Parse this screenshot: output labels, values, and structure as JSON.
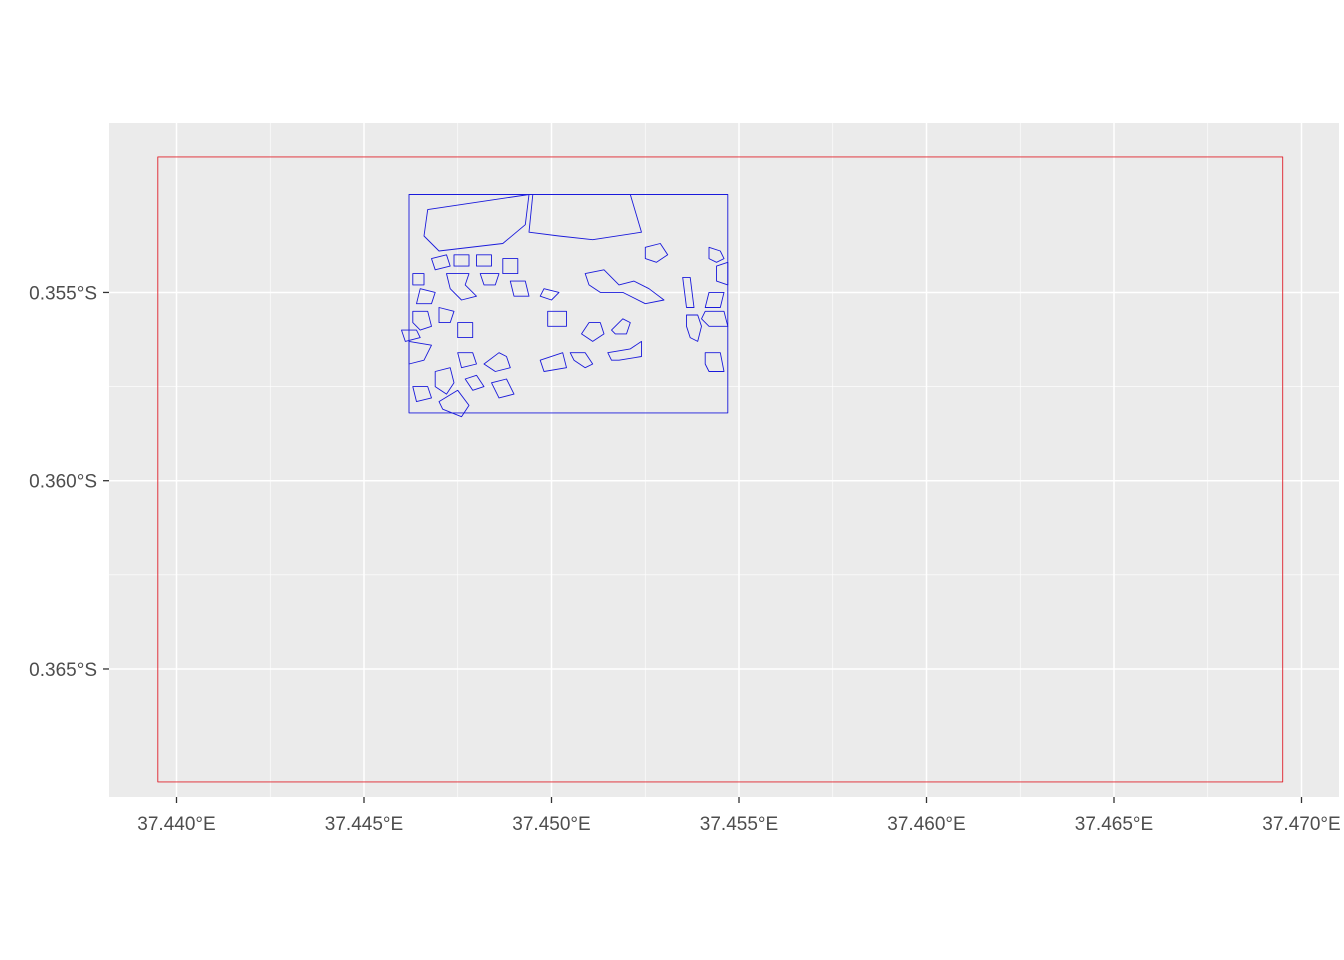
{
  "chart_data": {
    "type": "map",
    "crs_labels": "longitude/latitude",
    "xlim": [
      37.4382,
      37.471
    ],
    "ylim": [
      -0.3684,
      -0.3505
    ],
    "x_ticks": [
      {
        "value": 37.44,
        "label": "37.440°E"
      },
      {
        "value": 37.445,
        "label": "37.445°E"
      },
      {
        "value": 37.45,
        "label": "37.450°E"
      },
      {
        "value": 37.455,
        "label": "37.455°E"
      },
      {
        "value": 37.46,
        "label": "37.460°E"
      },
      {
        "value": 37.465,
        "label": "37.465°E"
      },
      {
        "value": 37.47,
        "label": "37.470°E"
      }
    ],
    "y_ticks": [
      {
        "value": -0.355,
        "label": "0.355°S"
      },
      {
        "value": -0.36,
        "label": "0.360°S"
      },
      {
        "value": -0.365,
        "label": "0.365°S"
      }
    ],
    "grid": true,
    "panel_background": "#ebebeb",
    "grid_color": "#ffffff",
    "layers": [
      {
        "name": "outer-extent",
        "color": "#e0202a",
        "polygons": [
          [
            [
              37.4395,
              -0.3514
            ],
            [
              37.4695,
              -0.3514
            ],
            [
              37.4695,
              -0.368
            ],
            [
              37.4395,
              -0.368
            ]
          ]
        ]
      },
      {
        "name": "fields",
        "color": "#1a1adb",
        "polygons": [
          [
            [
              37.4462,
              -0.3524
            ],
            [
              37.4547,
              -0.3524
            ],
            [
              37.4547,
              -0.3582
            ],
            [
              37.4462,
              -0.3582
            ]
          ],
          [
            [
              37.4467,
              -0.3528
            ],
            [
              37.4494,
              -0.3524
            ],
            [
              37.4493,
              -0.3532
            ],
            [
              37.4487,
              -0.3537
            ],
            [
              37.447,
              -0.3539
            ],
            [
              37.4466,
              -0.3535
            ]
          ],
          [
            [
              37.4495,
              -0.3524
            ],
            [
              37.4521,
              -0.3524
            ],
            [
              37.4524,
              -0.3534
            ],
            [
              37.4511,
              -0.3536
            ],
            [
              37.4502,
              -0.3535
            ],
            [
              37.4494,
              -0.3534
            ]
          ],
          [
            [
              37.4509,
              -0.3545
            ],
            [
              37.4514,
              -0.3544
            ],
            [
              37.4518,
              -0.3548
            ],
            [
              37.4522,
              -0.3547
            ],
            [
              37.4526,
              -0.3549
            ],
            [
              37.453,
              -0.3552
            ],
            [
              37.4525,
              -0.3553
            ],
            [
              37.4519,
              -0.355
            ],
            [
              37.4513,
              -0.355
            ],
            [
              37.451,
              -0.3548
            ]
          ],
          [
            [
              37.4525,
              -0.3538
            ],
            [
              37.4529,
              -0.3537
            ],
            [
              37.4531,
              -0.354
            ],
            [
              37.4528,
              -0.3542
            ],
            [
              37.4525,
              -0.3541
            ]
          ],
          [
            [
              37.4542,
              -0.3538
            ],
            [
              37.4545,
              -0.3539
            ],
            [
              37.4546,
              -0.3541
            ],
            [
              37.4544,
              -0.3542
            ],
            [
              37.4542,
              -0.3541
            ]
          ],
          [
            [
              37.4544,
              -0.3543
            ],
            [
              37.4547,
              -0.3542
            ],
            [
              37.4547,
              -0.3548
            ],
            [
              37.4544,
              -0.3547
            ]
          ],
          [
            [
              37.4542,
              -0.355
            ],
            [
              37.4546,
              -0.355
            ],
            [
              37.4545,
              -0.3554
            ],
            [
              37.4541,
              -0.3554
            ]
          ],
          [
            [
              37.4541,
              -0.3555
            ],
            [
              37.4546,
              -0.3555
            ],
            [
              37.4547,
              -0.3559
            ],
            [
              37.4542,
              -0.3559
            ],
            [
              37.454,
              -0.3557
            ]
          ],
          [
            [
              37.4535,
              -0.3546
            ],
            [
              37.4537,
              -0.3546
            ],
            [
              37.4538,
              -0.3554
            ],
            [
              37.4536,
              -0.3554
            ]
          ],
          [
            [
              37.4536,
              -0.3556
            ],
            [
              37.4539,
              -0.3556
            ],
            [
              37.454,
              -0.3559
            ],
            [
              37.4539,
              -0.3563
            ],
            [
              37.4537,
              -0.3562
            ],
            [
              37.4536,
              -0.3559
            ]
          ],
          [
            [
              37.4541,
              -0.3566
            ],
            [
              37.4545,
              -0.3566
            ],
            [
              37.4546,
              -0.3571
            ],
            [
              37.4542,
              -0.3571
            ],
            [
              37.4541,
              -0.3569
            ]
          ],
          [
            [
              37.4482,
              -0.3569
            ],
            [
              37.4485,
              -0.3571
            ],
            [
              37.4489,
              -0.357
            ],
            [
              37.4488,
              -0.3567
            ],
            [
              37.4486,
              -0.3566
            ]
          ],
          [
            [
              37.4497,
              -0.3568
            ],
            [
              37.4503,
              -0.3566
            ],
            [
              37.4504,
              -0.357
            ],
            [
              37.4498,
              -0.3571
            ]
          ],
          [
            [
              37.4505,
              -0.3566
            ],
            [
              37.4509,
              -0.3566
            ],
            [
              37.4511,
              -0.3569
            ],
            [
              37.4509,
              -0.357
            ],
            [
              37.4506,
              -0.3568
            ]
          ],
          [
            [
              37.4508,
              -0.3561
            ],
            [
              37.451,
              -0.3558
            ],
            [
              37.4513,
              -0.3558
            ],
            [
              37.4514,
              -0.3561
            ],
            [
              37.4511,
              -0.3563
            ]
          ],
          [
            [
              37.4515,
              -0.3566
            ],
            [
              37.4521,
              -0.3565
            ],
            [
              37.4524,
              -0.3563
            ],
            [
              37.4524,
              -0.3567
            ],
            [
              37.4518,
              -0.3568
            ],
            [
              37.4516,
              -0.3568
            ]
          ],
          [
            [
              37.4499,
              -0.3555
            ],
            [
              37.4504,
              -0.3555
            ],
            [
              37.4504,
              -0.3559
            ],
            [
              37.4499,
              -0.3559
            ]
          ],
          [
            [
              37.4498,
              -0.3549
            ],
            [
              37.4502,
              -0.355
            ],
            [
              37.45,
              -0.3552
            ],
            [
              37.4497,
              -0.3551
            ]
          ],
          [
            [
              37.4516,
              -0.356
            ],
            [
              37.4519,
              -0.3557
            ],
            [
              37.4521,
              -0.3558
            ],
            [
              37.452,
              -0.3561
            ],
            [
              37.4517,
              -0.3561
            ]
          ],
          [
            [
              37.4463,
              -0.3555
            ],
            [
              37.4467,
              -0.3555
            ],
            [
              37.4468,
              -0.3559
            ],
            [
              37.4465,
              -0.356
            ],
            [
              37.4463,
              -0.3558
            ]
          ],
          [
            [
              37.4465,
              -0.3549
            ],
            [
              37.4469,
              -0.355
            ],
            [
              37.4468,
              -0.3553
            ],
            [
              37.4464,
              -0.3553
            ]
          ],
          [
            [
              37.4462,
              -0.3563
            ],
            [
              37.4468,
              -0.3564
            ],
            [
              37.4466,
              -0.3568
            ],
            [
              37.4462,
              -0.3569
            ]
          ],
          [
            [
              37.4469,
              -0.3571
            ],
            [
              37.4473,
              -0.357
            ],
            [
              37.4474,
              -0.3574
            ],
            [
              37.4472,
              -0.3577
            ],
            [
              37.4469,
              -0.3575
            ]
          ],
          [
            [
              37.4475,
              -0.3566
            ],
            [
              37.4479,
              -0.3566
            ],
            [
              37.448,
              -0.3569
            ],
            [
              37.4476,
              -0.357
            ]
          ],
          [
            [
              37.4477,
              -0.3573
            ],
            [
              37.448,
              -0.3572
            ],
            [
              37.4482,
              -0.3575
            ],
            [
              37.4479,
              -0.3576
            ]
          ],
          [
            [
              37.4484,
              -0.3574
            ],
            [
              37.4488,
              -0.3573
            ],
            [
              37.449,
              -0.3577
            ],
            [
              37.4486,
              -0.3578
            ]
          ],
          [
            [
              37.447,
              -0.3579
            ],
            [
              37.4475,
              -0.3576
            ],
            [
              37.4478,
              -0.358
            ],
            [
              37.4476,
              -0.3583
            ],
            [
              37.4471,
              -0.3581
            ]
          ],
          [
            [
              37.4472,
              -0.3545
            ],
            [
              37.4478,
              -0.3545
            ],
            [
              37.4477,
              -0.3548
            ],
            [
              37.448,
              -0.3551
            ],
            [
              37.4476,
              -0.3552
            ],
            [
              37.4473,
              -0.3549
            ]
          ],
          [
            [
              37.4481,
              -0.3545
            ],
            [
              37.4486,
              -0.3545
            ],
            [
              37.4485,
              -0.3548
            ],
            [
              37.4482,
              -0.3548
            ]
          ],
          [
            [
              37.447,
              -0.3554
            ],
            [
              37.4474,
              -0.3555
            ],
            [
              37.4473,
              -0.3558
            ],
            [
              37.447,
              -0.3558
            ]
          ],
          [
            [
              37.4475,
              -0.3558
            ],
            [
              37.4479,
              -0.3558
            ],
            [
              37.4479,
              -0.3562
            ],
            [
              37.4475,
              -0.3562
            ]
          ],
          [
            [
              37.4468,
              -0.3541
            ],
            [
              37.4472,
              -0.354
            ],
            [
              37.4473,
              -0.3543
            ],
            [
              37.4469,
              -0.3544
            ]
          ],
          [
            [
              37.4474,
              -0.354
            ],
            [
              37.4478,
              -0.354
            ],
            [
              37.4478,
              -0.3543
            ],
            [
              37.4474,
              -0.3543
            ]
          ],
          [
            [
              37.448,
              -0.354
            ],
            [
              37.4484,
              -0.354
            ],
            [
              37.4484,
              -0.3543
            ],
            [
              37.448,
              -0.3543
            ]
          ],
          [
            [
              37.4487,
              -0.3541
            ],
            [
              37.4491,
              -0.3541
            ],
            [
              37.4491,
              -0.3545
            ],
            [
              37.4487,
              -0.3545
            ]
          ],
          [
            [
              37.4463,
              -0.3545
            ],
            [
              37.4466,
              -0.3545
            ],
            [
              37.4466,
              -0.3548
            ],
            [
              37.4463,
              -0.3548
            ]
          ],
          [
            [
              37.4489,
              -0.3547
            ],
            [
              37.4493,
              -0.3547
            ],
            [
              37.4494,
              -0.3551
            ],
            [
              37.449,
              -0.3551
            ]
          ],
          [
            [
              37.446,
              -0.356
            ],
            [
              37.4464,
              -0.356
            ],
            [
              37.4465,
              -0.3562
            ],
            [
              37.4461,
              -0.3563
            ]
          ],
          [
            [
              37.4463,
              -0.3575
            ],
            [
              37.4467,
              -0.3575
            ],
            [
              37.4468,
              -0.3578
            ],
            [
              37.4464,
              -0.3579
            ]
          ]
        ]
      }
    ]
  }
}
